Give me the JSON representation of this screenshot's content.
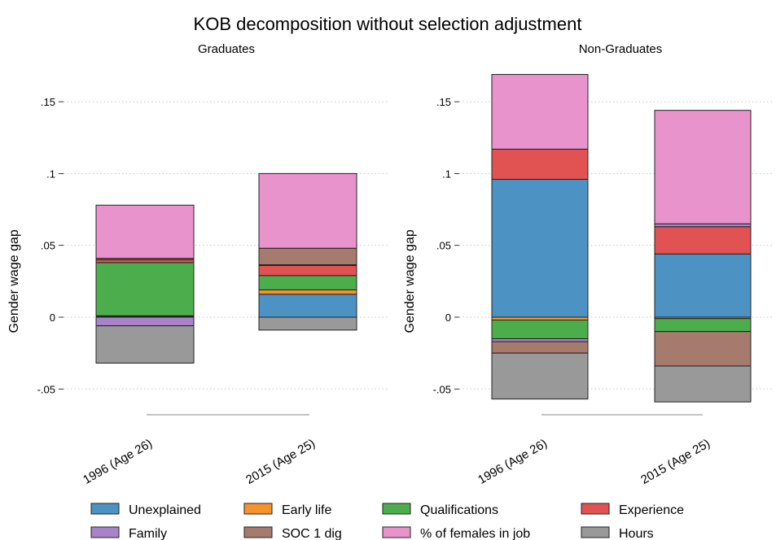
{
  "chart_data": {
    "title": "KOB decomposition without selection adjustment",
    "type": "bar",
    "stacked": true,
    "grid": true,
    "legend_position": "bottom",
    "ylabel": "Gender wage gap",
    "ylim": [
      -0.055,
      0.165
    ],
    "yticks": [
      {
        "value": -0.05,
        "label": "-.05"
      },
      {
        "value": 0,
        "label": "0"
      },
      {
        "value": 0.05,
        "label": ".05"
      },
      {
        "value": 0.1,
        "label": ".1"
      },
      {
        "value": 0.15,
        "label": ".15"
      }
    ],
    "components": [
      {
        "name": "Unexplained",
        "color": "#4c93c4"
      },
      {
        "name": "Early life",
        "color": "#f7932f"
      },
      {
        "name": "Qualifications",
        "color": "#4cad4c"
      },
      {
        "name": "Experience",
        "color": "#e05352"
      },
      {
        "name": "Family",
        "color": "#a883c9"
      },
      {
        "name": "SOC 1 dig",
        "color": "#a67a6d"
      },
      {
        "name": "% of females in job",
        "color": "#e993cd"
      },
      {
        "name": "Hours",
        "color": "#999999"
      }
    ],
    "panels": [
      {
        "subtitle": "Graduates",
        "ylim": [
          -0.055,
          0.165
        ],
        "categories": [
          "1996 (Age 26)",
          "2015 (Age 25)"
        ],
        "bars": [
          {
            "category": "1996 (Age 26)",
            "values": {
              "Unexplained": 0.0005,
              "Early life": 0.0005,
              "Qualifications": 0.037,
              "Experience": 0.002,
              "Family": -0.006,
              "SOC 1 dig": 0.001,
              "% of females in job": 0.037,
              "Hours": -0.026
            }
          },
          {
            "category": "2015 (Age 25)",
            "values": {
              "Unexplained": 0.016,
              "Early life": 0.003,
              "Qualifications": 0.01,
              "Experience": 0.007,
              "Family": 0.0005,
              "SOC 1 dig": 0.0115,
              "% of females in job": 0.052,
              "Hours": -0.009
            }
          }
        ]
      },
      {
        "subtitle": "Non-Graduates",
        "ylim": [
          -0.06,
          0.17
        ],
        "categories": [
          "1996 (Age 26)",
          "2015 (Age 25)"
        ],
        "bars": [
          {
            "category": "1996 (Age 26)",
            "values": {
              "Unexplained": 0.096,
              "Early life": -0.002,
              "Qualifications": -0.013,
              "Experience": 0.021,
              "Family": -0.002,
              "SOC 1 dig": -0.008,
              "% of females in job": 0.052,
              "Hours": -0.032
            }
          },
          {
            "category": "2015 (Age 25)",
            "values": {
              "Unexplained": 0.044,
              "Early life": -0.001,
              "Qualifications": -0.009,
              "Experience": 0.019,
              "Family": 0.002,
              "SOC 1 dig": -0.024,
              "% of females in job": 0.079,
              "Hours": -0.025
            }
          }
        ]
      }
    ]
  }
}
